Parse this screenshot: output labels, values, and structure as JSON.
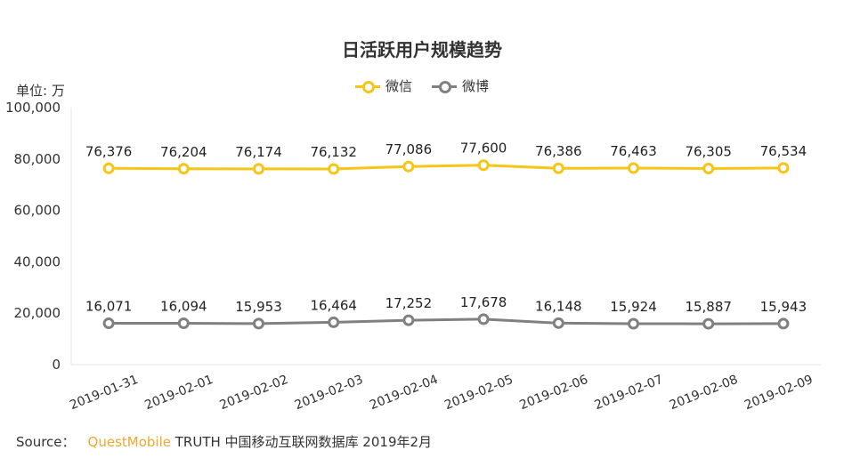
{
  "chart_data": {
    "type": "line",
    "title": "日活跃用户规模趋势",
    "ylabel": "单位: 万",
    "xlabel": "",
    "categories": [
      "2019-01-31",
      "2019-02-01",
      "2019-02-02",
      "2019-02-03",
      "2019-02-04",
      "2019-02-05",
      "2019-02-06",
      "2019-02-07",
      "2019-02-08",
      "2019-02-09"
    ],
    "series": [
      {
        "name": "微信",
        "color": "#f5c518",
        "values": [
          76376,
          76204,
          76174,
          76132,
          77086,
          77600,
          76386,
          76463,
          76305,
          76534
        ]
      },
      {
        "name": "微博",
        "color": "#808080",
        "values": [
          16071,
          16094,
          15953,
          16464,
          17252,
          17678,
          16148,
          15924,
          15887,
          15943
        ]
      }
    ],
    "ylim": [
      0,
      100000
    ],
    "yticks": [
      "0",
      "20,000",
      "40,000",
      "60,000",
      "80,000",
      "100,000"
    ],
    "ytick_values": [
      0,
      20000,
      40000,
      60000,
      80000,
      100000
    ],
    "data_labels": [
      [
        "76,376",
        "76,204",
        "76,174",
        "76,132",
        "77,086",
        "77,600",
        "76,386",
        "76,463",
        "76,305",
        "76,534"
      ],
      [
        "16,071",
        "16,094",
        "15,953",
        "16,464",
        "17,252",
        "17,678",
        "16,148",
        "15,924",
        "15,887",
        "15,943"
      ]
    ],
    "legend_position": "top-center",
    "grid": false
  },
  "source": {
    "label": "Source：",
    "brand": "QuestMobile",
    "text": "TRUTH 中国移动互联网数据库 2019年2月"
  }
}
